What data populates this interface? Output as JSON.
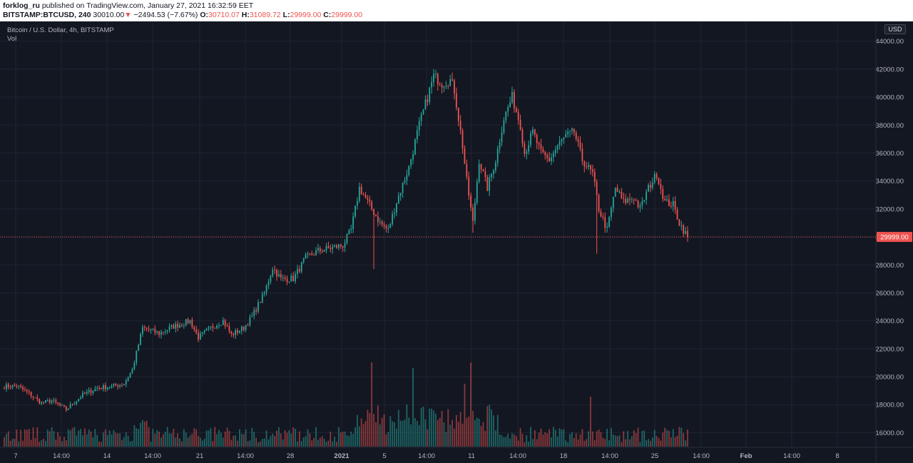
{
  "header": {
    "author": "forklog_ru",
    "published_text": "published on TradingView.com, January 27, 2021 16:32:59 EET",
    "symbol": "BITSTAMP:BTCUSD, 240",
    "last": "30010.00",
    "change": "−2494.53 (−7.67%)",
    "o_label": "O:",
    "o": "30710.07",
    "h_label": "H:",
    "h": "31089.72",
    "l_label": "L:",
    "l": "29999.00",
    "c_label": "C:",
    "c": "29999.00"
  },
  "legend": {
    "title": "Bitcoin / U.S. Dollar, 4h, BITSTAMP",
    "volume": "Vol"
  },
  "currency_button": "USD",
  "colors": {
    "background": "#131722",
    "grid": "#1f2433",
    "up": "#26a69a",
    "down": "#ef5350",
    "axis_text": "#b2b5be",
    "price_line": "#ef5350"
  },
  "chart_data": {
    "type": "candlestick",
    "timeframe": "4h",
    "y_axis": {
      "ticks": [
        "44000.00",
        "42000.00",
        "40000.00",
        "38000.00",
        "36000.00",
        "34000.00",
        "32000.00",
        "30000.00",
        "28000.00",
        "26000.00",
        "24000.00",
        "22000.00",
        "20000.00",
        "18000.00",
        "16000.00"
      ],
      "range": [
        15000,
        44700
      ]
    },
    "x_axis": {
      "ticks": [
        "7",
        "14:00",
        "14",
        "14:00",
        "21",
        "14:00",
        "28",
        "2021",
        "5",
        "14:00",
        "11",
        "14:00",
        "18",
        "14:00",
        "25",
        "14:00",
        "Feb",
        "14:00",
        "8"
      ]
    },
    "current_price": 29999.0,
    "current_price_label": "29999.00",
    "anchors": [
      [
        0,
        19300
      ],
      [
        6,
        19350
      ],
      [
        12,
        18800
      ],
      [
        18,
        18100
      ],
      [
        23,
        18300
      ],
      [
        30,
        17650
      ],
      [
        38,
        18700
      ],
      [
        45,
        19200
      ],
      [
        52,
        19300
      ],
      [
        58,
        19500
      ],
      [
        62,
        20500
      ],
      [
        67,
        23500
      ],
      [
        75,
        23100
      ],
      [
        82,
        23600
      ],
      [
        90,
        24000
      ],
      [
        94,
        22800
      ],
      [
        100,
        23500
      ],
      [
        106,
        24000
      ],
      [
        110,
        23000
      ],
      [
        116,
        23500
      ],
      [
        120,
        24300
      ],
      [
        126,
        26000
      ],
      [
        130,
        27800
      ],
      [
        134,
        27000
      ],
      [
        140,
        27000
      ],
      [
        146,
        28500
      ],
      [
        152,
        29000
      ],
      [
        158,
        29200
      ],
      [
        164,
        29400
      ],
      [
        168,
        30500
      ],
      [
        172,
        33500
      ],
      [
        178,
        32000
      ],
      [
        182,
        31000
      ],
      [
        186,
        30500
      ],
      [
        190,
        32500
      ],
      [
        196,
        35000
      ],
      [
        201,
        38000
      ],
      [
        205,
        40000
      ],
      [
        208,
        41500
      ],
      [
        212,
        41000
      ],
      [
        216,
        41200
      ],
      [
        218,
        40500
      ],
      [
        222,
        36500
      ],
      [
        224,
        34000
      ],
      [
        227,
        31000
      ],
      [
        230,
        35500
      ],
      [
        234,
        33500
      ],
      [
        238,
        35500
      ],
      [
        242,
        38500
      ],
      [
        246,
        40000
      ],
      [
        250,
        38000
      ],
      [
        252,
        36000
      ],
      [
        256,
        37500
      ],
      [
        260,
        36000
      ],
      [
        264,
        35500
      ],
      [
        268,
        36500
      ],
      [
        272,
        37200
      ],
      [
        276,
        37500
      ],
      [
        280,
        35500
      ],
      [
        285,
        34500
      ],
      [
        288,
        32000
      ],
      [
        292,
        30500
      ],
      [
        296,
        33500
      ],
      [
        300,
        32500
      ],
      [
        305,
        32800
      ],
      [
        308,
        32000
      ],
      [
        312,
        33500
      ],
      [
        316,
        34500
      ],
      [
        320,
        32500
      ],
      [
        324,
        32300
      ],
      [
        327,
        31000
      ],
      [
        331,
        30000
      ]
    ]
  }
}
